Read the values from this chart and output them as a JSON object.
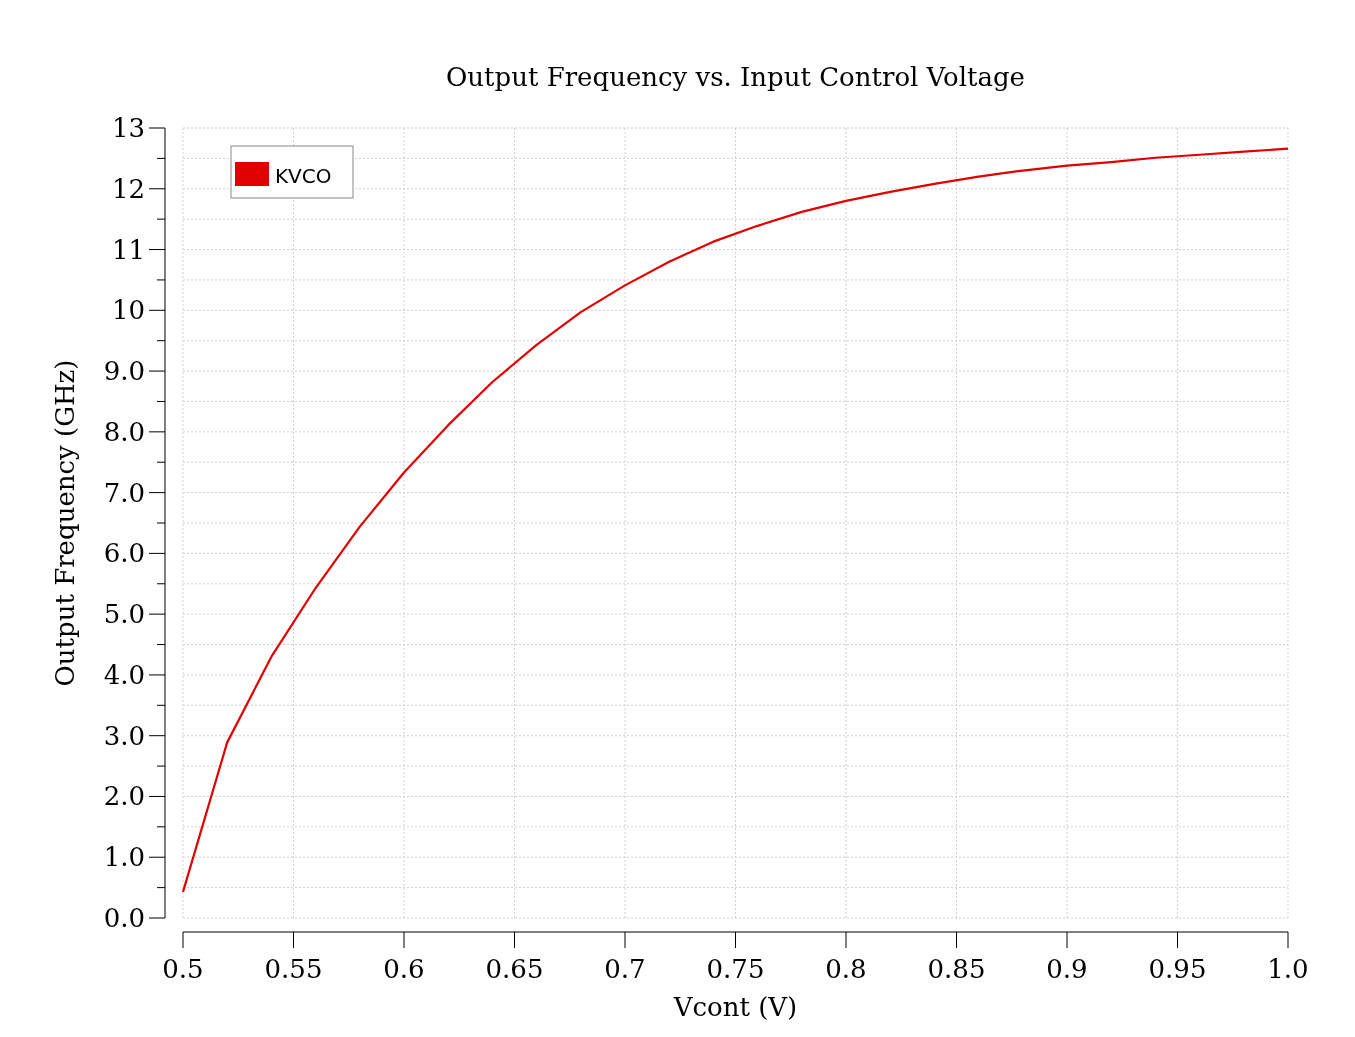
{
  "chart_data": {
    "type": "line",
    "title": "Output Frequency vs. Input Control Voltage",
    "xlabel": "Vcont (V)",
    "ylabel": "Output Frequency (GHz)",
    "x": [
      0.5,
      0.52,
      0.54,
      0.56,
      0.58,
      0.6,
      0.62,
      0.64,
      0.66,
      0.68,
      0.7,
      0.72,
      0.74,
      0.76,
      0.78,
      0.8,
      0.82,
      0.84,
      0.86,
      0.88,
      0.9,
      0.92,
      0.94,
      0.96,
      0.98,
      1.0
    ],
    "series": [
      {
        "name": "KVCO",
        "color": "#e00000",
        "values": [
          0.43,
          2.89,
          4.3,
          5.43,
          6.44,
          7.33,
          8.11,
          8.82,
          9.43,
          9.97,
          10.41,
          10.8,
          11.13,
          11.39,
          11.62,
          11.8,
          11.95,
          12.08,
          12.2,
          12.3,
          12.38,
          12.44,
          12.51,
          12.56,
          12.61,
          12.66
        ]
      }
    ],
    "xlim": [
      0.5,
      1.0
    ],
    "xticks": [
      0.5,
      0.55,
      0.6,
      0.65,
      0.7,
      0.75,
      0.8,
      0.85,
      0.9,
      0.95,
      {
        "value": 1.0,
        "label": "1.0"
      }
    ],
    "ylim": [
      0,
      13
    ],
    "yticks": [
      {
        "value": 0,
        "label": "0.0"
      },
      {
        "value": 0.5,
        "label": null
      },
      {
        "value": 1,
        "label": "1.0"
      },
      {
        "value": 1.5,
        "label": null
      },
      {
        "value": 2,
        "label": "2.0"
      },
      {
        "value": 2.5,
        "label": null
      },
      {
        "value": 3,
        "label": "3.0"
      },
      {
        "value": 3.5,
        "label": null
      },
      {
        "value": 4,
        "label": "4.0"
      },
      {
        "value": 4.5,
        "label": null
      },
      {
        "value": 5,
        "label": "5.0"
      },
      {
        "value": 5.5,
        "label": null
      },
      {
        "value": 6,
        "label": "6.0"
      },
      {
        "value": 6.5,
        "label": null
      },
      {
        "value": 7,
        "label": "7.0"
      },
      {
        "value": 7.5,
        "label": null
      },
      {
        "value": 8,
        "label": "8.0"
      },
      {
        "value": 8.5,
        "label": null
      },
      {
        "value": 9,
        "label": "9.0"
      },
      {
        "value": 9.5,
        "label": null
      },
      10,
      {
        "value": 10.5,
        "label": null
      },
      11,
      {
        "value": 11.5,
        "label": null
      },
      12,
      {
        "value": 12.5,
        "label": null
      },
      13
    ],
    "grid": true,
    "legend": "top left",
    "line_style": "solid",
    "marker": "none"
  }
}
